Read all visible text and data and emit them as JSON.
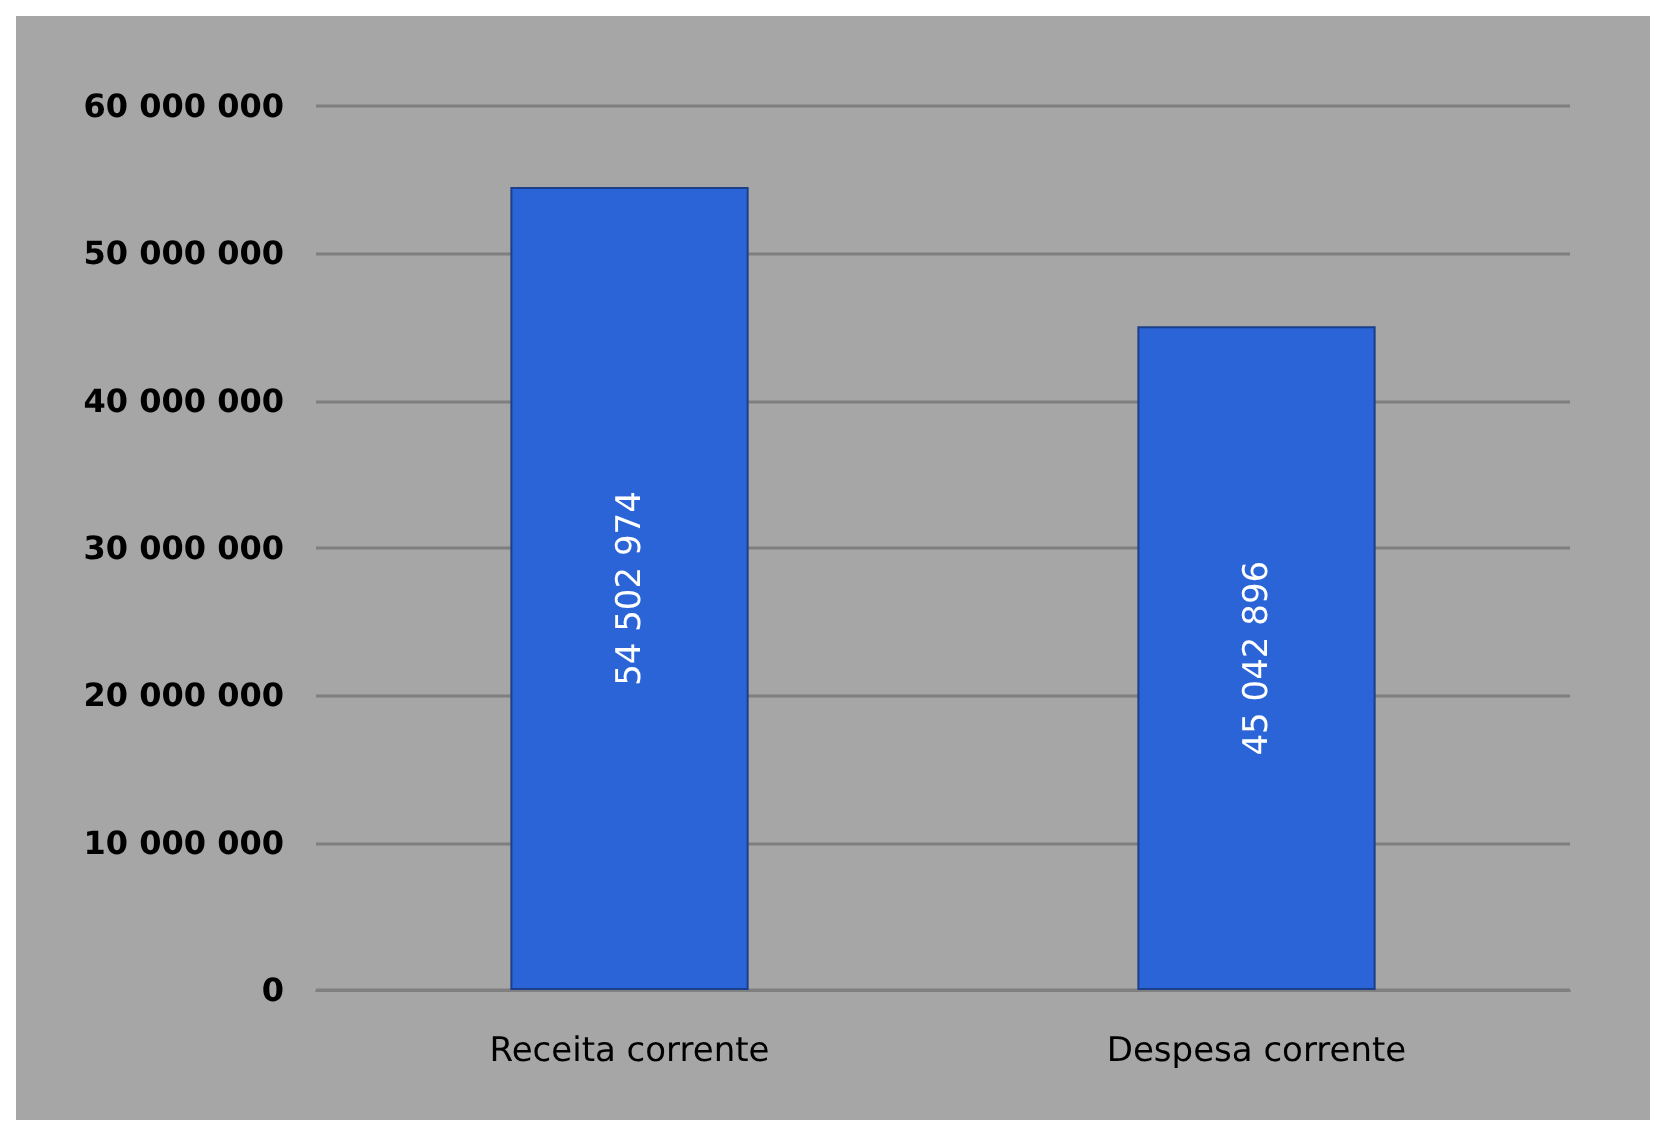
{
  "chart_data": {
    "type": "bar",
    "categories": [
      "Receita corrente",
      "Despesa corrente"
    ],
    "values": [
      54502974,
      45042896
    ],
    "color": "#2a64d6",
    "value_labels": [
      "54 502 974",
      "45 042 896"
    ],
    "ylim": [
      0,
      60000000
    ],
    "yticks": [
      {
        "value": 0,
        "label": "0"
      },
      {
        "value": 10000000,
        "label": "10 000 000"
      },
      {
        "value": 20000000,
        "label": "20 000 000"
      },
      {
        "value": 30000000,
        "label": "30 000 000"
      },
      {
        "value": 40000000,
        "label": "40 000 000"
      },
      {
        "value": 50000000,
        "label": "50 000 000"
      },
      {
        "value": 60000000,
        "label": "60 000 000"
      }
    ],
    "grid": true
  }
}
